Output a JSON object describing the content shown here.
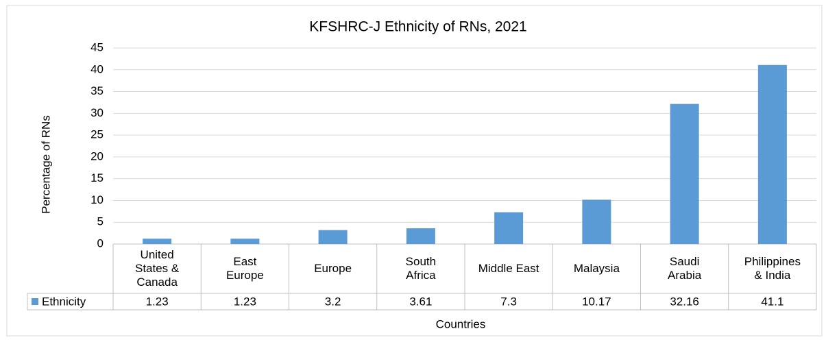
{
  "chart_data": {
    "type": "bar",
    "title": "KFSHRC-J Ethnicity of RNs, 2021",
    "x_label": "Countries",
    "y_label": "Percentage of RNs",
    "categories": [
      "United States & Canada",
      "East Europe",
      "Europe",
      "South Africa",
      "Middle East",
      "Malaysia",
      "Saudi Arabia",
      "Philippines & India"
    ],
    "series": [
      {
        "name": "Ethnicity",
        "color": "#5b9bd5",
        "values": [
          1.23,
          1.23,
          3.2,
          3.61,
          7.3,
          10.17,
          32.16,
          41.1
        ]
      }
    ],
    "ylim": [
      0,
      45
    ],
    "yticks": [
      0,
      5,
      10,
      15,
      20,
      25,
      30,
      35,
      40,
      45
    ],
    "grid": true,
    "data_table": true
  }
}
